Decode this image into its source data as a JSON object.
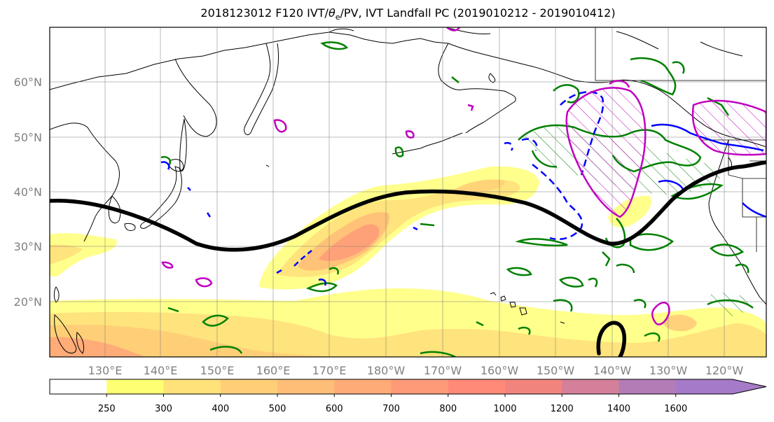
{
  "title": {
    "prefix": "2018123012 F120 IVT/",
    "theta": "θ",
    "sub": "e",
    "suffix": "/PV, IVT Landfall PC (2019010212 - 2019010412)"
  },
  "lat_labels": [
    "60°N",
    "50°N",
    "40°N",
    "30°N",
    "20°N"
  ],
  "lon_labels": [
    "130°E",
    "140°E",
    "150°E",
    "160°E",
    "170°E",
    "180°W",
    "170°W",
    "160°W",
    "150°W",
    "140°W",
    "130°W",
    "120°W"
  ],
  "colorbar": {
    "levels": [
      "250",
      "300",
      "400",
      "500",
      "600",
      "700",
      "800",
      "1000",
      "1200",
      "1400",
      "1600"
    ],
    "colors": [
      "#ffffff",
      "#ffff74",
      "#ffe27a",
      "#ffcf78",
      "#ffbe78",
      "#ffab78",
      "#ff9a78",
      "#ff8a78",
      "#f2847e",
      "#d4809a",
      "#b47cb6",
      "#a57ac8"
    ]
  },
  "legend_colors": {
    "ivt_fill_low": "#ffff80",
    "ivt_fill_mid": "#ffcc77",
    "ivt_fill_high": "#ff9a78",
    "theta_e_contour": "#008000",
    "pv_contour": "#0000ff",
    "pc_contour": "#c000c0",
    "landfall_line": "#000000"
  }
}
